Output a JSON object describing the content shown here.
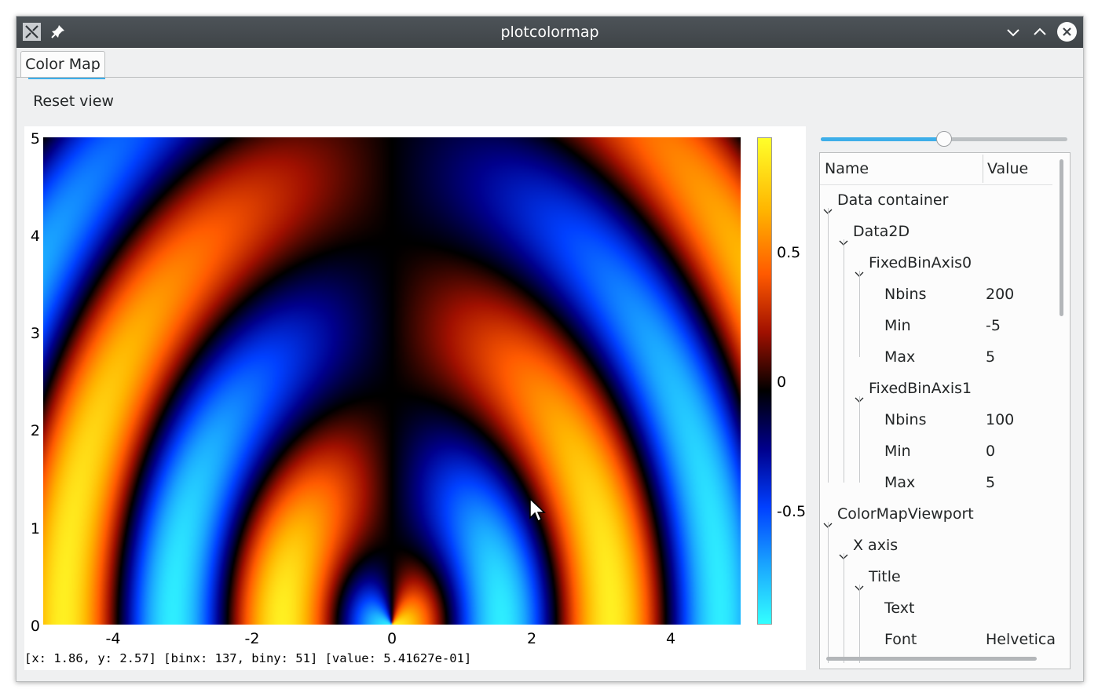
{
  "window": {
    "title": "plotcolormap"
  },
  "tabs": [
    {
      "label": "Color Map"
    }
  ],
  "toolbar": {
    "reset_label": "Reset view"
  },
  "plot": {
    "y_ticks": [
      "5",
      "4",
      "3",
      "2",
      "1",
      "0"
    ],
    "x_ticks": [
      "-4",
      "-2",
      "0",
      "2",
      "4"
    ],
    "colorbar_ticks": [
      "0.5",
      "0",
      "-0.5"
    ],
    "status": "[x: 1.86, y: 2.57] [binx: 137, biny: 51] [value: 5.41627e-01]"
  },
  "chart_data": {
    "type": "heatmap",
    "x_range": [
      -5,
      5
    ],
    "y_range": [
      0,
      5
    ],
    "nbins_x": 200,
    "nbins_y": 100,
    "z_range": [
      -1,
      1
    ],
    "x_ticks": [
      -4,
      -2,
      0,
      2,
      4
    ],
    "y_ticks": [
      0,
      1,
      2,
      3,
      4,
      5
    ],
    "colorbar_ticks": [
      0.5,
      0,
      -0.5
    ],
    "colors": [
      "#33ffff",
      "#1aa6ff",
      "#0040ff",
      "#00008c",
      "#000000",
      "#a01000",
      "#ff5a00",
      "#ffb400",
      "#ffff2a"
    ],
    "legend_placement": "right"
  },
  "slider": {
    "value_fraction": 0.5
  },
  "tree": {
    "header_name": "Name",
    "header_value": "Value",
    "rows": [
      {
        "label": "Data container",
        "value": "",
        "depth": 0,
        "expanded": true
      },
      {
        "label": "Data2D",
        "value": "",
        "depth": 1,
        "expanded": true
      },
      {
        "label": "FixedBinAxis0",
        "value": "",
        "depth": 2,
        "expanded": true
      },
      {
        "label": "Nbins",
        "value": "200",
        "depth": 3
      },
      {
        "label": "Min",
        "value": "-5",
        "depth": 3
      },
      {
        "label": "Max",
        "value": "5",
        "depth": 3
      },
      {
        "label": "FixedBinAxis1",
        "value": "",
        "depth": 2,
        "expanded": true
      },
      {
        "label": "Nbins",
        "value": "100",
        "depth": 3
      },
      {
        "label": "Min",
        "value": "0",
        "depth": 3
      },
      {
        "label": "Max",
        "value": "5",
        "depth": 3
      },
      {
        "label": "ColorMapViewport",
        "value": "",
        "depth": 0,
        "expanded": true
      },
      {
        "label": "X axis",
        "value": "",
        "depth": 1,
        "expanded": true
      },
      {
        "label": "Title",
        "value": "",
        "depth": 2,
        "expanded": true
      },
      {
        "label": "Text",
        "value": "",
        "depth": 3
      },
      {
        "label": "Font",
        "value": "Helvetica",
        "depth": 3
      }
    ]
  },
  "icons": {
    "app": "app-x-icon",
    "pin": "pin-icon",
    "minimize": "chevron-down-icon",
    "maximize": "chevron-up-icon",
    "close": "close-icon",
    "cursor": "mouse-pointer-icon"
  }
}
